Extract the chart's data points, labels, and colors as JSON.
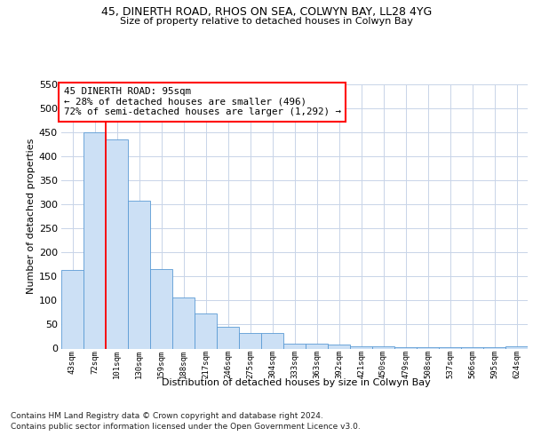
{
  "title1": "45, DINERTH ROAD, RHOS ON SEA, COLWYN BAY, LL28 4YG",
  "title2": "Size of property relative to detached houses in Colwyn Bay",
  "xlabel": "Distribution of detached houses by size in Colwyn Bay",
  "ylabel": "Number of detached properties",
  "categories": [
    "43sqm",
    "72sqm",
    "101sqm",
    "130sqm",
    "159sqm",
    "188sqm",
    "217sqm",
    "246sqm",
    "275sqm",
    "304sqm",
    "333sqm",
    "363sqm",
    "392sqm",
    "421sqm",
    "450sqm",
    "479sqm",
    "508sqm",
    "537sqm",
    "566sqm",
    "595sqm",
    "624sqm"
  ],
  "values": [
    163,
    450,
    436,
    307,
    165,
    106,
    73,
    45,
    32,
    32,
    10,
    10,
    8,
    5,
    4,
    3,
    3,
    2,
    2,
    2,
    4
  ],
  "bar_color": "#cce0f5",
  "bar_edge_color": "#5b9bd5",
  "annotation_text": "45 DINERTH ROAD: 95sqm\n← 28% of detached houses are smaller (496)\n72% of semi-detached houses are larger (1,292) →",
  "red_line_x": 1.5,
  "ylim": [
    0,
    550
  ],
  "yticks": [
    0,
    50,
    100,
    150,
    200,
    250,
    300,
    350,
    400,
    450,
    500,
    550
  ],
  "footer1": "Contains HM Land Registry data © Crown copyright and database right 2024.",
  "footer2": "Contains public sector information licensed under the Open Government Licence v3.0.",
  "bg_color": "#ffffff",
  "grid_color": "#c8d4e8"
}
